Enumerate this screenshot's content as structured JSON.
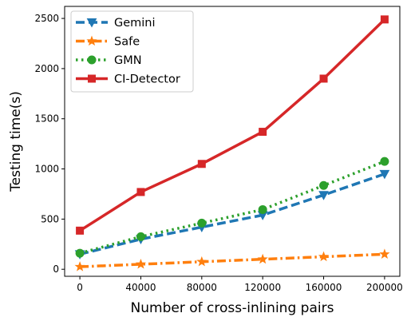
{
  "chart_data": {
    "type": "line",
    "title": "",
    "xlabel": "Number of cross-inlining pairs",
    "ylabel": "Testing time(s)",
    "x": [
      0,
      40000,
      80000,
      120000,
      160000,
      200000
    ],
    "xticks": [
      "0",
      "40000",
      "80000",
      "120000",
      "160000",
      "200000"
    ],
    "yticks": [
      "0",
      "500",
      "1000",
      "1500",
      "2000",
      "2500"
    ],
    "xlim": [
      -10000,
      210000
    ],
    "ylim": [
      -70,
      2620
    ],
    "grid": false,
    "legend_position": "top-left",
    "series": [
      {
        "name": "Gemini",
        "values": [
          150,
          300,
          420,
          540,
          740,
          950
        ],
        "color": "#1f77b4",
        "linestyle": "dashed",
        "marker": "triangle-down"
      },
      {
        "name": "Safe",
        "values": [
          25,
          50,
          75,
          100,
          125,
          150
        ],
        "color": "#ff7f0e",
        "linestyle": "dashdot",
        "marker": "star"
      },
      {
        "name": "GMN",
        "values": [
          160,
          325,
          460,
          595,
          835,
          1075
        ],
        "color": "#2ca02c",
        "linestyle": "dotted",
        "marker": "circle"
      },
      {
        "name": "CI-Detector",
        "values": [
          385,
          770,
          1050,
          1370,
          1900,
          2490
        ],
        "color": "#d62728",
        "linestyle": "solid",
        "marker": "square"
      }
    ]
  }
}
